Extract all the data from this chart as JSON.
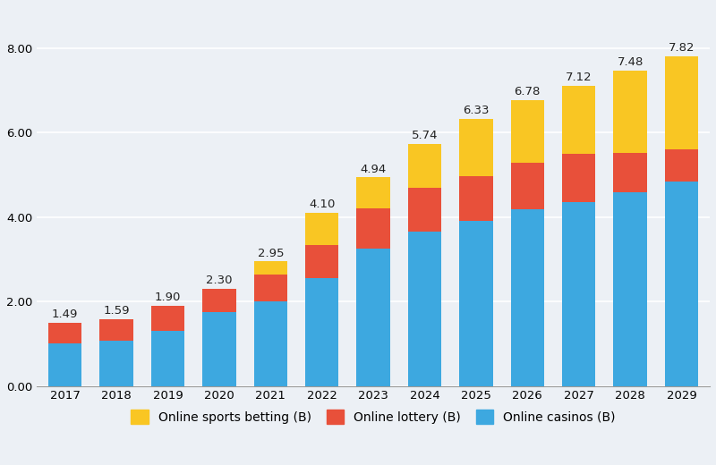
{
  "years": [
    2017,
    2018,
    2019,
    2020,
    2021,
    2022,
    2023,
    2024,
    2025,
    2026,
    2027,
    2028,
    2029
  ],
  "totals": [
    1.49,
    1.59,
    1.9,
    2.3,
    2.95,
    4.1,
    4.94,
    5.74,
    6.33,
    6.78,
    7.12,
    7.48,
    7.82
  ],
  "casinos": [
    1.0,
    1.07,
    1.3,
    1.75,
    2.0,
    2.55,
    3.25,
    3.65,
    3.92,
    4.18,
    4.35,
    4.6,
    4.85
  ],
  "lottery": [
    0.49,
    0.52,
    0.6,
    0.55,
    0.65,
    0.8,
    0.95,
    1.05,
    1.05,
    1.1,
    1.15,
    0.93,
    0.75
  ],
  "sports_betting_color": "#F9C623",
  "lottery_color": "#E8503A",
  "casinos_color": "#3DA8E0",
  "background_color": "#ECF0F5",
  "ylim": [
    0,
    9.0
  ],
  "yticks": [
    0.0,
    2.0,
    4.0,
    6.0,
    8.0
  ],
  "legend_labels": [
    "Online sports betting (B)",
    "Online lottery (B)",
    "Online casinos (B)"
  ],
  "bar_width": 0.65,
  "total_label_fontsize": 9.5,
  "axis_label_fontsize": 9.5,
  "legend_fontsize": 10
}
